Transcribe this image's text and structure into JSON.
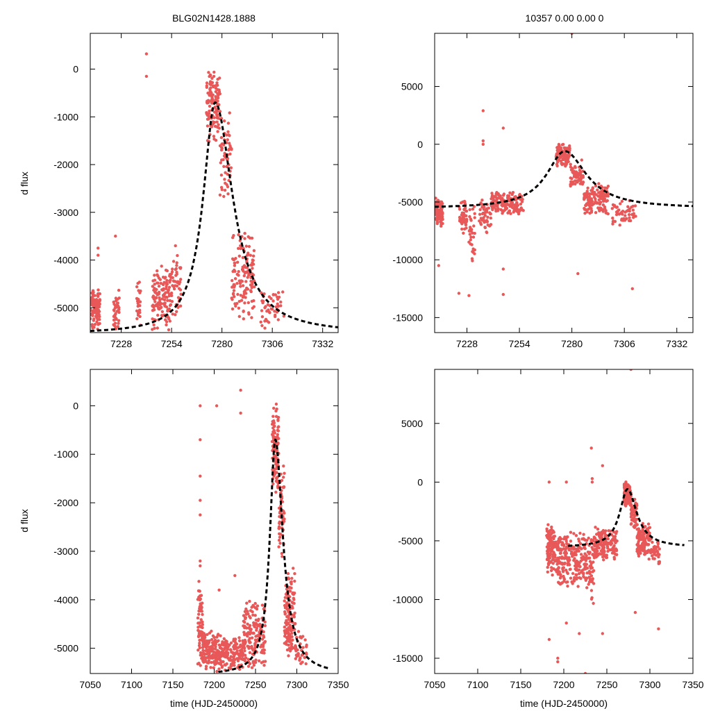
{
  "figure": {
    "title_left": "BLG02N1428.1888",
    "title_right": "10357  0.00  0.00  0",
    "ylabel": "d flux",
    "xlabel": "time (HJD-2450000)",
    "point_color": "#e85858",
    "model_color": "#000000"
  },
  "chart_data": [
    {
      "type": "scatter",
      "panel": "top-left",
      "xlim": [
        7212,
        7340
      ],
      "ylim": [
        -5520,
        750
      ],
      "xticks": [
        7228,
        7254,
        7280,
        7306,
        7332
      ],
      "yticks": [
        0,
        -1000,
        -2000,
        -3000,
        -4000,
        -5000
      ],
      "model": {
        "t0": 7276.5,
        "peak": -700,
        "base": -5550,
        "sigma_left": 7.5,
        "sigma_right": 11,
        "x_start": 7212,
        "x_end": 7340
      },
      "clusters": [
        {
          "t0": 7212,
          "t1": 7217,
          "lo": -5520,
          "hi": -4500,
          "n": 110
        },
        {
          "t0": 7224,
          "t1": 7227,
          "lo": -5500,
          "hi": -4600,
          "n": 40
        },
        {
          "t0": 7236,
          "t1": 7238,
          "lo": -5480,
          "hi": -4300,
          "n": 25
        },
        {
          "t0": 7244,
          "t1": 7254,
          "lo": -5500,
          "hi": -4100,
          "n": 140
        },
        {
          "t0": 7254,
          "t1": 7259,
          "lo": -5300,
          "hi": -3700,
          "n": 45
        },
        {
          "t0": 7272,
          "t1": 7279,
          "lo": -1600,
          "hi": 100,
          "n": 120
        },
        {
          "t0": 7279,
          "t1": 7285,
          "lo": -2800,
          "hi": -800,
          "n": 60
        },
        {
          "t0": 7285,
          "t1": 7297,
          "lo": -5300,
          "hi": -3300,
          "n": 140
        },
        {
          "t0": 7300,
          "t1": 7312,
          "lo": -5450,
          "hi": -4600,
          "n": 50
        }
      ],
      "outliers": [
        [
          7241,
          320
        ],
        [
          7241,
          -150
        ],
        [
          7225,
          -3500
        ],
        [
          7216,
          -3900
        ],
        [
          7216,
          -3750
        ],
        [
          7256,
          -3700
        ]
      ]
    },
    {
      "type": "scatter",
      "panel": "top-right",
      "xlim": [
        7212,
        7340
      ],
      "ylim": [
        -16300,
        9600
      ],
      "xticks": [
        7228,
        7254,
        7280,
        7306,
        7332
      ],
      "yticks": [
        5000,
        0,
        -5000,
        -10000,
        -15000
      ],
      "model": {
        "t0": 7276.5,
        "peak": -600,
        "base": -5550,
        "sigma_left": 11,
        "sigma_right": 13,
        "x_start": 7212,
        "x_end": 7340
      },
      "clusters": [
        {
          "t0": 7212,
          "t1": 7216,
          "lo": -7200,
          "hi": -4600,
          "n": 110
        },
        {
          "t0": 7224,
          "t1": 7228,
          "lo": -8000,
          "hi": -4800,
          "n": 45
        },
        {
          "t0": 7229,
          "t1": 7232,
          "lo": -10800,
          "hi": -5000,
          "n": 30
        },
        {
          "t0": 7234,
          "t1": 7240,
          "lo": -7800,
          "hi": -4600,
          "n": 50
        },
        {
          "t0": 7240,
          "t1": 7256,
          "lo": -6200,
          "hi": -4000,
          "n": 150
        },
        {
          "t0": 7272,
          "t1": 7279,
          "lo": -2000,
          "hi": 100,
          "n": 110
        },
        {
          "t0": 7279,
          "t1": 7286,
          "lo": -4000,
          "hi": -1200,
          "n": 60
        },
        {
          "t0": 7286,
          "t1": 7298,
          "lo": -6200,
          "hi": -3300,
          "n": 130
        },
        {
          "t0": 7300,
          "t1": 7312,
          "lo": -7200,
          "hi": -4600,
          "n": 55
        }
      ],
      "outliers": [
        [
          7236,
          2900
        ],
        [
          7236,
          300
        ],
        [
          7236,
          0
        ],
        [
          7246,
          1400
        ],
        [
          7280,
          9600
        ],
        [
          7224,
          -12900
        ],
        [
          7229,
          -13100
        ],
        [
          7246,
          -13000
        ],
        [
          7310,
          -12500
        ],
        [
          7283,
          -11200
        ],
        [
          7214,
          -10500
        ],
        [
          7246,
          -10800
        ]
      ]
    },
    {
      "type": "scatter",
      "panel": "bottom-left",
      "xlim": [
        7050,
        7350
      ],
      "ylim": [
        -5520,
        750
      ],
      "xticks": [
        7050,
        7100,
        7150,
        7200,
        7250,
        7300,
        7350
      ],
      "yticks": [
        0,
        -1000,
        -2000,
        -3000,
        -4000,
        -5000
      ],
      "model": {
        "t0": 7274,
        "peak": -700,
        "base": -5550,
        "sigma_left": 8,
        "sigma_right": 11,
        "x_start": 7205,
        "x_end": 7340
      },
      "clusters": [
        {
          "t0": 7180,
          "t1": 7186,
          "lo": -5520,
          "hi": -3500,
          "n": 70
        },
        {
          "t0": 7186,
          "t1": 7205,
          "lo": -5520,
          "hi": -4600,
          "n": 130
        },
        {
          "t0": 7205,
          "t1": 7235,
          "lo": -5520,
          "hi": -4700,
          "n": 170
        },
        {
          "t0": 7235,
          "t1": 7262,
          "lo": -5500,
          "hi": -4000,
          "n": 170
        },
        {
          "t0": 7270,
          "t1": 7278,
          "lo": -1800,
          "hi": 100,
          "n": 120
        },
        {
          "t0": 7278,
          "t1": 7285,
          "lo": -3200,
          "hi": -1000,
          "n": 60
        },
        {
          "t0": 7285,
          "t1": 7298,
          "lo": -5300,
          "hi": -3300,
          "n": 130
        },
        {
          "t0": 7298,
          "t1": 7312,
          "lo": -5500,
          "hi": -4600,
          "n": 40
        }
      ],
      "outliers": [
        [
          7183,
          0
        ],
        [
          7183,
          -700
        ],
        [
          7183,
          -1450
        ],
        [
          7183,
          -1950
        ],
        [
          7183,
          -2250
        ],
        [
          7183,
          -3200
        ],
        [
          7183,
          -3300
        ],
        [
          7203,
          0
        ],
        [
          7232,
          320
        ],
        [
          7232,
          -150
        ],
        [
          7225,
          -3500
        ],
        [
          7206,
          -3800
        ]
      ]
    },
    {
      "type": "scatter",
      "panel": "bottom-right",
      "xlim": [
        7050,
        7350
      ],
      "ylim": [
        -16300,
        9600
      ],
      "xticks": [
        7050,
        7100,
        7150,
        7200,
        7250,
        7300,
        7350
      ],
      "yticks": [
        5000,
        0,
        -5000,
        -10000,
        -15000
      ],
      "model": {
        "t0": 7274,
        "peak": -600,
        "base": -5550,
        "sigma_left": 11,
        "sigma_right": 13,
        "x_start": 7205,
        "x_end": 7340
      },
      "clusters": [
        {
          "t0": 7180,
          "t1": 7190,
          "lo": -8000,
          "hi": -3200,
          "n": 110
        },
        {
          "t0": 7190,
          "t1": 7205,
          "lo": -9500,
          "hi": -4200,
          "n": 110
        },
        {
          "t0": 7205,
          "t1": 7225,
          "lo": -9000,
          "hi": -4000,
          "n": 110
        },
        {
          "t0": 7225,
          "t1": 7235,
          "lo": -10500,
          "hi": -4200,
          "n": 60
        },
        {
          "t0": 7235,
          "t1": 7262,
          "lo": -6800,
          "hi": -3800,
          "n": 160
        },
        {
          "t0": 7270,
          "t1": 7278,
          "lo": -2200,
          "hi": 100,
          "n": 100
        },
        {
          "t0": 7278,
          "t1": 7285,
          "lo": -4000,
          "hi": -1200,
          "n": 60
        },
        {
          "t0": 7285,
          "t1": 7300,
          "lo": -6800,
          "hi": -3300,
          "n": 130
        },
        {
          "t0": 7300,
          "t1": 7312,
          "lo": -7200,
          "hi": -4600,
          "n": 40
        }
      ],
      "outliers": [
        [
          7183,
          0
        ],
        [
          7203,
          0
        ],
        [
          7232,
          2900
        ],
        [
          7233,
          300
        ],
        [
          7233,
          0
        ],
        [
          7245,
          1400
        ],
        [
          7278,
          9600
        ],
        [
          7183,
          -13400
        ],
        [
          7193,
          -15000
        ],
        [
          7193,
          -15300
        ],
        [
          7225,
          -16300
        ],
        [
          7218,
          -12900
        ],
        [
          7245,
          -12900
        ],
        [
          7310,
          -12500
        ],
        [
          7283,
          -11100
        ],
        [
          7203,
          -12000
        ]
      ]
    }
  ]
}
